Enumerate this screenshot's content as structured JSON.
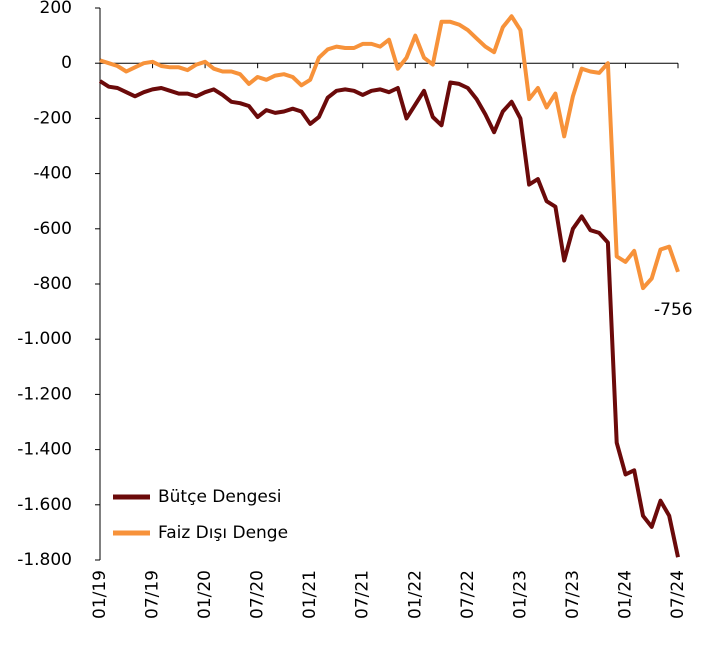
{
  "chart_data": {
    "type": "line",
    "categories": [
      "01/19",
      null,
      null,
      null,
      null,
      null,
      "07/19",
      null,
      null,
      null,
      null,
      null,
      "01/20",
      null,
      null,
      null,
      null,
      null,
      "07/20",
      null,
      null,
      null,
      null,
      null,
      "01/21",
      null,
      null,
      null,
      null,
      null,
      "07/21",
      null,
      null,
      null,
      null,
      null,
      "01/22",
      null,
      null,
      null,
      null,
      null,
      "07/22",
      null,
      null,
      null,
      null,
      null,
      "01/23",
      null,
      null,
      null,
      null,
      null,
      "07/23",
      null,
      null,
      null,
      null,
      null,
      "01/24",
      null,
      null,
      null,
      null,
      null,
      "07/24"
    ],
    "series": [
      {
        "name": "Bütçe Dengesi",
        "color": "#6b0a0a",
        "values": [
          -65,
          -85,
          -90,
          -105,
          -120,
          -105,
          -95,
          -90,
          -100,
          -110,
          -110,
          -120,
          -105,
          -95,
          -115,
          -140,
          -145,
          -155,
          -195,
          -170,
          -180,
          -175,
          -165,
          -175,
          -220,
          -195,
          -125,
          -100,
          -95,
          -100,
          -115,
          -100,
          -95,
          -105,
          -90,
          -200,
          -150,
          -100,
          -195,
          -225,
          -70,
          -75,
          -90,
          -130,
          -185,
          -250,
          -175,
          -140,
          -200,
          -440,
          -420,
          -500,
          -520,
          -715,
          -600,
          -555,
          -605,
          -615,
          -650,
          -1375,
          -1490,
          -1475,
          -1640,
          -1680,
          -1585,
          -1640,
          -1790
        ]
      },
      {
        "name": "Faiz Dışı Denge",
        "color": "#f7923a",
        "values": [
          10,
          0,
          -10,
          -30,
          -15,
          0,
          5,
          -10,
          -15,
          -15,
          -25,
          -5,
          5,
          -20,
          -30,
          -30,
          -40,
          -75,
          -50,
          -60,
          -45,
          -40,
          -50,
          -80,
          -60,
          20,
          50,
          60,
          55,
          55,
          70,
          70,
          60,
          85,
          -20,
          20,
          100,
          20,
          -5,
          150,
          150,
          140,
          120,
          90,
          60,
          40,
          130,
          170,
          120,
          -130,
          -90,
          -160,
          -110,
          -265,
          -120,
          -20,
          -30,
          -35,
          0,
          -700,
          -720,
          -680,
          -815,
          -780,
          -675,
          -665,
          -756
        ],
        "value_labels": [
          null,
          null,
          null,
          null,
          null,
          null,
          null,
          null,
          null,
          null,
          null,
          null,
          null,
          null,
          null,
          null,
          null,
          null,
          null,
          null,
          null,
          null,
          null,
          null,
          null,
          null,
          null,
          null,
          null,
          null,
          null,
          null,
          null,
          null,
          null,
          null,
          null,
          null,
          null,
          null,
          null,
          null,
          null,
          null,
          null,
          null,
          null,
          null,
          null,
          null,
          null,
          null,
          null,
          null,
          null,
          null,
          null,
          null,
          null,
          null,
          null,
          null,
          null,
          null,
          null,
          null,
          "-756"
        ]
      }
    ],
    "ylim": [
      -1800,
      200
    ],
    "yticks": [
      200,
      0,
      -200,
      -400,
      -600,
      -800,
      {
        "value": -1000,
        "label": "-1.000"
      },
      {
        "value": -1200,
        "label": "-1.200"
      },
      {
        "value": -1400,
        "label": "-1.400"
      },
      {
        "value": -1600,
        "label": "-1.600"
      },
      {
        "value": -1800,
        "label": "-1.800"
      }
    ],
    "legend": "lower left"
  }
}
